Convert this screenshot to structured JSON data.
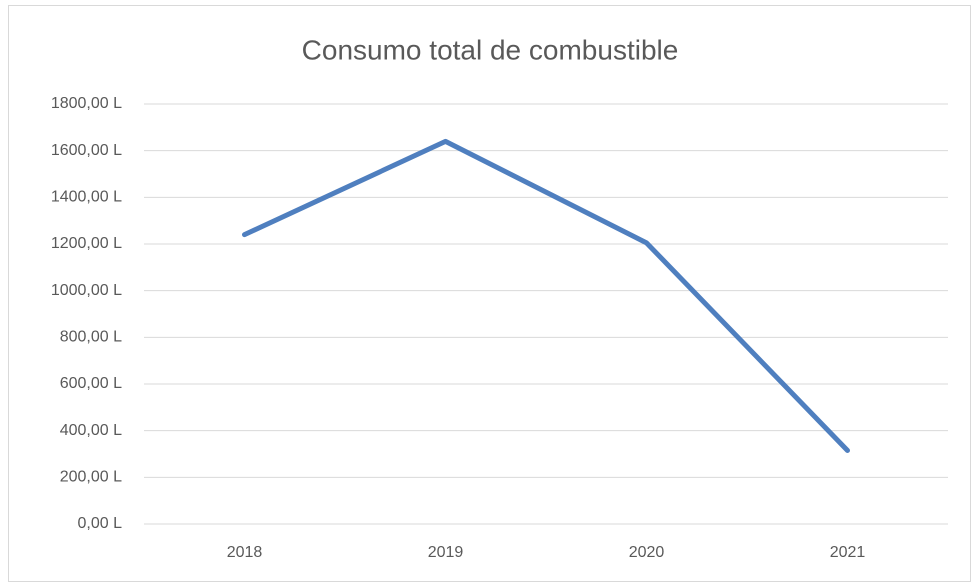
{
  "chart_data": {
    "type": "line",
    "title": "Consumo total de combustible",
    "categories": [
      "2018",
      "2019",
      "2020",
      "2021"
    ],
    "series": [
      {
        "name": "Consumo total de combustible",
        "color": "#4f7fbf",
        "values": [
          1240,
          1640,
          1205,
          315
        ]
      }
    ],
    "ylim": [
      0,
      1800
    ],
    "yticks": [
      {
        "value": 0,
        "label": "0,00 L"
      },
      {
        "value": 200,
        "label": "200,00 L"
      },
      {
        "value": 400,
        "label": "400,00 L"
      },
      {
        "value": 600,
        "label": "600,00 L"
      },
      {
        "value": 800,
        "label": "800,00 L"
      },
      {
        "value": 1000,
        "label": "1000,00 L"
      },
      {
        "value": 1200,
        "label": "1200,00 L"
      },
      {
        "value": 1400,
        "label": "1400,00 L"
      },
      {
        "value": 1600,
        "label": "1600,00 L"
      },
      {
        "value": 1800,
        "label": "1800,00 L"
      }
    ],
    "grid": true
  }
}
